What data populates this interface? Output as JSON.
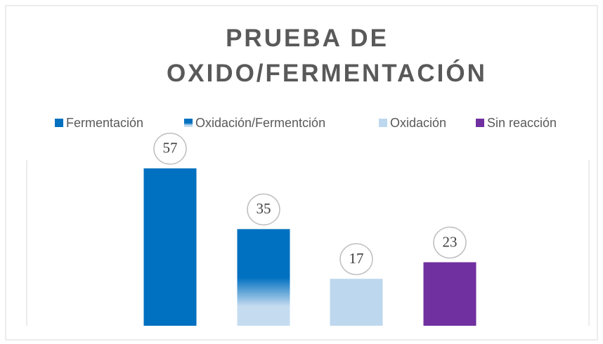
{
  "chart_data": {
    "type": "bar",
    "title": "PRUEBA DE OXIDO/FERMENTACIÓN",
    "categories": [
      null
    ],
    "series": [
      {
        "name": "Fermentación",
        "color": "#0070c0",
        "values": [
          57
        ]
      },
      {
        "name": "Oxidación/Fermentción",
        "color": "#0070c0",
        "gradient": "#c5dcf0",
        "values": [
          35
        ]
      },
      {
        "name": "Oxidación",
        "color": "#bdd7ee",
        "values": [
          17
        ]
      },
      {
        "name": "Sin reacción",
        "color": "#7030a0",
        "values": [
          23
        ]
      }
    ],
    "ylim": [
      0,
      60
    ],
    "legend": "top"
  }
}
